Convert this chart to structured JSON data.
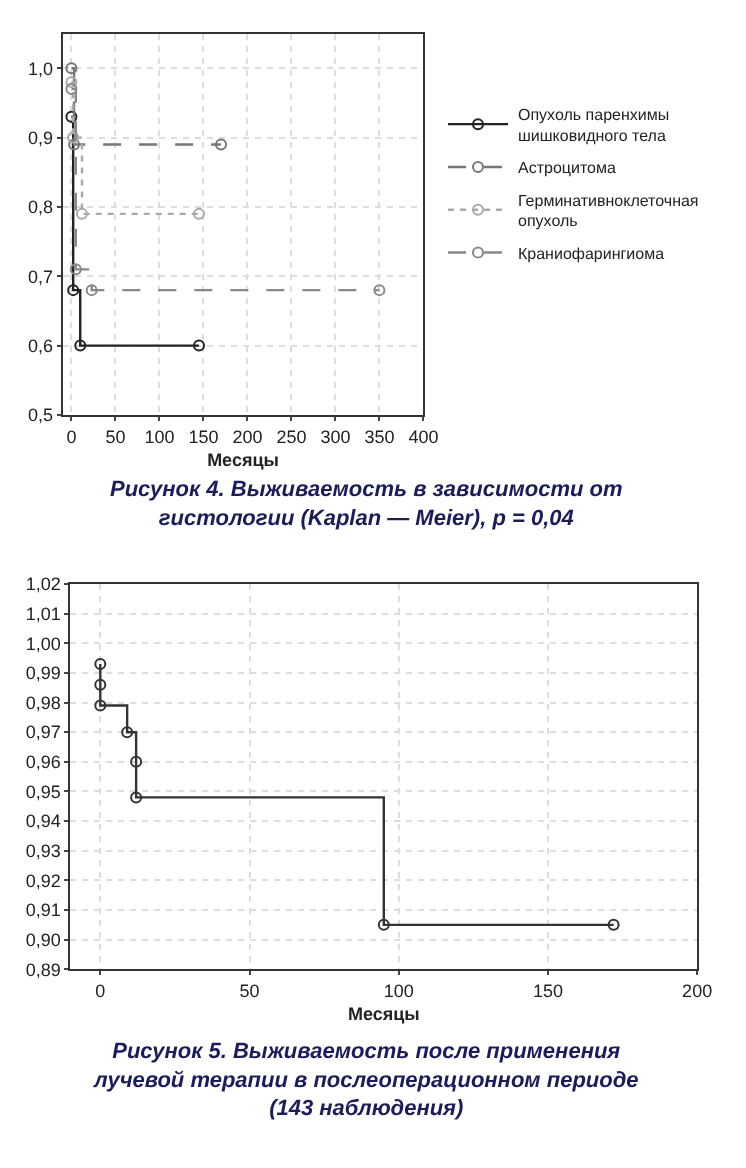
{
  "chart_data": [
    {
      "type": "step",
      "title": "Рисунок 4. Выживаемость в зависимости от гистологии (Kaplan — Meier), p = 0,04",
      "xlabel": "Месяцы",
      "xlim": [
        -10,
        400
      ],
      "xticks": [
        0,
        50,
        100,
        150,
        200,
        250,
        300,
        350,
        400
      ],
      "ylim": [
        0.5,
        1.05
      ],
      "yticks": [
        {
          "value": 0.5,
          "label": "0,5"
        },
        {
          "value": 0.6,
          "label": "0,6"
        },
        {
          "value": 0.7,
          "label": "0,7"
        },
        {
          "value": 0.8,
          "label": "0,8"
        },
        {
          "value": 0.9,
          "label": "0,9"
        },
        {
          "value": 1.0,
          "label": "1,0"
        }
      ],
      "grid": true,
      "legend": "right",
      "marker": "circle",
      "series": [
        {
          "name": "Опухоль паренхимы шишковидного тела",
          "color": "#222222",
          "line_style": "solid",
          "x": [
            0,
            2,
            10,
            145
          ],
          "values": [
            0.93,
            0.68,
            0.6,
            0.6
          ]
        },
        {
          "name": "Астроцитома",
          "color": "#777777",
          "line_style": "dashed",
          "x": [
            0,
            3,
            170
          ],
          "values": [
            1.0,
            0.89,
            0.89
          ]
        },
        {
          "name": "Герминативноклеточная опухоль",
          "color": "#aaaaaa",
          "line_style": "dotted",
          "x": [
            0,
            2,
            12,
            145
          ],
          "values": [
            0.98,
            0.9,
            0.79,
            0.79
          ]
        },
        {
          "name": "Краниофарингиома",
          "color": "#888888",
          "line_style": "dashed",
          "x": [
            0,
            5,
            23,
            350
          ],
          "values": [
            0.97,
            0.71,
            0.68,
            0.68
          ]
        }
      ]
    },
    {
      "type": "step",
      "title": "Рисунок 5. Выживаемость после применения лучевой терапии в послеоперационном периоде (143 наблюдения)",
      "xlabel": "Месяцы",
      "xlim": [
        -10,
        200
      ],
      "xticks": [
        0,
        50,
        100,
        150,
        200
      ],
      "ylim": [
        0.89,
        1.02
      ],
      "yticks": [
        {
          "value": 0.89,
          "label": "0,89"
        },
        {
          "value": 0.9,
          "label": "0,90"
        },
        {
          "value": 0.91,
          "label": "0,91"
        },
        {
          "value": 0.92,
          "label": "0,92"
        },
        {
          "value": 0.93,
          "label": "0,93"
        },
        {
          "value": 0.94,
          "label": "0,94"
        },
        {
          "value": 0.95,
          "label": "0,95"
        },
        {
          "value": 0.96,
          "label": "0,96"
        },
        {
          "value": 0.97,
          "label": "0,97"
        },
        {
          "value": 0.98,
          "label": "0,98"
        },
        {
          "value": 0.99,
          "label": "0,99"
        },
        {
          "value": 1.0,
          "label": "1,00"
        },
        {
          "value": 1.01,
          "label": "1,01"
        },
        {
          "value": 1.02,
          "label": "1,02"
        }
      ],
      "grid": true,
      "marker": "circle",
      "series": [
        {
          "color": "#333333",
          "line_style": "solid",
          "x": [
            0,
            0,
            0,
            9,
            12,
            12,
            95,
            172
          ],
          "values": [
            0.993,
            0.986,
            0.979,
            0.97,
            0.96,
            0.948,
            0.905,
            0.905
          ]
        }
      ]
    }
  ]
}
